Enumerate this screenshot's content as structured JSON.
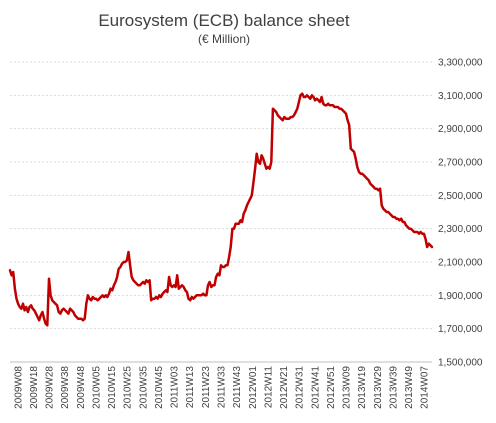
{
  "chart_data": {
    "type": "line",
    "title": "Eurosystem (ECB) balance sheet",
    "subtitle": "(€ Million)",
    "xlabel": "",
    "ylabel": "",
    "ylim": [
      1500000,
      3300000
    ],
    "y_ticks": [
      "1,500,000",
      "1,700,000",
      "1,900,000",
      "2,100,000",
      "2,300,000",
      "2,500,000",
      "2,700,000",
      "2,900,000",
      "3,100,000",
      "3,300,000"
    ],
    "y_tick_values": [
      1500000,
      1700000,
      1900000,
      2100000,
      2300000,
      2500000,
      2700000,
      2900000,
      3100000,
      3300000
    ],
    "y_axis_side": "right",
    "grid": true,
    "legend": "none",
    "categories": [
      "2009W08",
      "2009W18",
      "2009W28",
      "2009W38",
      "2009W48",
      "2010W05",
      "2010W15",
      "2010W25",
      "2010W35",
      "2010W45",
      "2011W03",
      "2011W13",
      "2011W23",
      "2011W33",
      "2011W43",
      "2012W01",
      "2012W11",
      "2012W21",
      "2012W31",
      "2012W41",
      "2012W51",
      "2013W09",
      "2013W19",
      "2013W29",
      "2013W39",
      "2013W49",
      "2014W07"
    ],
    "series": [
      {
        "name": "",
        "color": "#c00000",
        "x": [
          0,
          1,
          2,
          3,
          4,
          5,
          6,
          7,
          8,
          9,
          10,
          11,
          12,
          13,
          14,
          15,
          16,
          17,
          18,
          19,
          20,
          21,
          22,
          23,
          24,
          25,
          26,
          27,
          28,
          29,
          30,
          31,
          32,
          33,
          34,
          35,
          36,
          37,
          38,
          39,
          40,
          41,
          42,
          43,
          44,
          45,
          46,
          47,
          48,
          49,
          50,
          51,
          52,
          53,
          54,
          55,
          56,
          57,
          58,
          59,
          60,
          61,
          62,
          63,
          64,
          65,
          66,
          67,
          68,
          69,
          70,
          71,
          72,
          73,
          74,
          75,
          76,
          77,
          78,
          79,
          80,
          81,
          82,
          83,
          84,
          85,
          86,
          87,
          88,
          89,
          90,
          91,
          92,
          93,
          94,
          95,
          96,
          97,
          98,
          99,
          100,
          101,
          102,
          103,
          104,
          105,
          106,
          107,
          108,
          109,
          110,
          111,
          112,
          113,
          114,
          115,
          116,
          117,
          118,
          119,
          120,
          121,
          122,
          123,
          124,
          125,
          126,
          127,
          128,
          129,
          130,
          131,
          132,
          133,
          134,
          135,
          136,
          137,
          138,
          139,
          140,
          141,
          142,
          143,
          144,
          145,
          146,
          147,
          148,
          149,
          150,
          151,
          152,
          153,
          154,
          155,
          156,
          157,
          158,
          159,
          160,
          161,
          162,
          163,
          164,
          165,
          166,
          167,
          168,
          169,
          170,
          171,
          172,
          173,
          174,
          175,
          176,
          177,
          178,
          179,
          180,
          181,
          182,
          183,
          184,
          185,
          186,
          187,
          188,
          189,
          190,
          191,
          192,
          193,
          194,
          195,
          196,
          197,
          198,
          199,
          200,
          201,
          202,
          203,
          204,
          205,
          206,
          207,
          208,
          209,
          210,
          211,
          212,
          213,
          214,
          215,
          216,
          217,
          218,
          219,
          220,
          221,
          222,
          223,
          224,
          225,
          226,
          227,
          228,
          229,
          230,
          231,
          232,
          233,
          234,
          235,
          236,
          237,
          238,
          239,
          240,
          241,
          242,
          243,
          244,
          245,
          246,
          247,
          248,
          249,
          250,
          251,
          252,
          253,
          254,
          255,
          256,
          257,
          258,
          259,
          260
        ],
        "values": [
          2050000,
          2020000,
          2040000,
          1940000,
          1880000,
          1850000,
          1830000,
          1820000,
          1850000,
          1810000,
          1830000,
          1800000,
          1830000,
          1840000,
          1820000,
          1810000,
          1790000,
          1770000,
          1750000,
          1780000,
          1800000,
          1760000,
          1730000,
          1720000,
          2000000,
          1900000,
          1870000,
          1860000,
          1850000,
          1840000,
          1800000,
          1790000,
          1810000,
          1820000,
          1810000,
          1800000,
          1790000,
          1820000,
          1810000,
          1800000,
          1780000,
          1770000,
          1760000,
          1760000,
          1760000,
          1750000,
          1760000,
          1850000,
          1900000,
          1880000,
          1870000,
          1890000,
          1880000,
          1880000,
          1870000,
          1880000,
          1890000,
          1900000,
          1890000,
          1900000,
          1890000,
          1910000,
          1940000,
          1930000,
          1960000,
          1980000,
          2010000,
          2060000,
          2070000,
          2090000,
          2100000,
          2100000,
          2110000,
          2160000,
          2080000,
          2010000,
          1990000,
          1980000,
          1970000,
          1960000,
          1960000,
          1970000,
          1980000,
          1970000,
          1990000,
          1980000,
          1990000,
          1870000,
          1880000,
          1880000,
          1890000,
          1880000,
          1900000,
          1890000,
          1910000,
          1920000,
          1930000,
          1920000,
          2010000,
          1960000,
          1950000,
          1960000,
          1950000,
          2020000,
          1940000,
          1950000,
          1960000,
          1950000,
          1930000,
          1920000,
          1880000,
          1870000,
          1890000,
          1880000,
          1890000,
          1900000,
          1900000,
          1900000,
          1900000,
          1910000,
          1900000,
          1900000,
          1960000,
          1980000,
          1950000,
          1960000,
          1960000,
          2010000,
          2030000,
          2020000,
          2080000,
          2070000,
          2070000,
          2080000,
          2080000,
          2130000,
          2190000,
          2300000,
          2300000,
          2330000,
          2330000,
          2330000,
          2350000,
          2340000,
          2390000,
          2410000,
          2440000,
          2460000,
          2480000,
          2500000,
          2580000,
          2660000,
          2750000,
          2700000,
          2690000,
          2740000,
          2720000,
          2690000,
          2660000,
          2670000,
          2660000,
          2700000,
          3020000,
          3010000,
          3000000,
          2980000,
          2970000,
          2960000,
          2950000,
          2970000,
          2960000,
          2960000,
          2960000,
          2970000,
          2970000,
          2980000,
          3000000,
          3020000,
          3060000,
          3100000,
          3110000,
          3090000,
          3090000,
          3100000,
          3090000,
          3080000,
          3100000,
          3090000,
          3070000,
          3080000,
          3070000,
          3060000,
          3090000,
          3050000,
          3040000,
          3040000,
          3050000,
          3040000,
          3040000,
          3040000,
          3030000,
          3030000,
          3030000,
          3020000,
          3020000,
          3010000,
          3000000,
          2990000,
          2950000,
          2920000,
          2780000,
          2770000,
          2760000,
          2720000,
          2670000,
          2640000,
          2630000,
          2630000,
          2620000,
          2610000,
          2600000,
          2590000,
          2570000,
          2560000,
          2550000,
          2540000,
          2540000,
          2530000,
          2540000,
          2440000,
          2420000,
          2410000,
          2400000,
          2400000,
          2390000,
          2380000,
          2370000,
          2370000,
          2360000,
          2360000,
          2350000,
          2360000,
          2340000,
          2340000,
          2320000,
          2310000,
          2300000,
          2300000,
          2290000,
          2280000,
          2280000,
          2280000,
          2270000,
          2280000,
          2270000,
          2270000,
          2240000,
          2190000,
          2210000,
          2200000,
          2190000
        ]
      }
    ]
  }
}
